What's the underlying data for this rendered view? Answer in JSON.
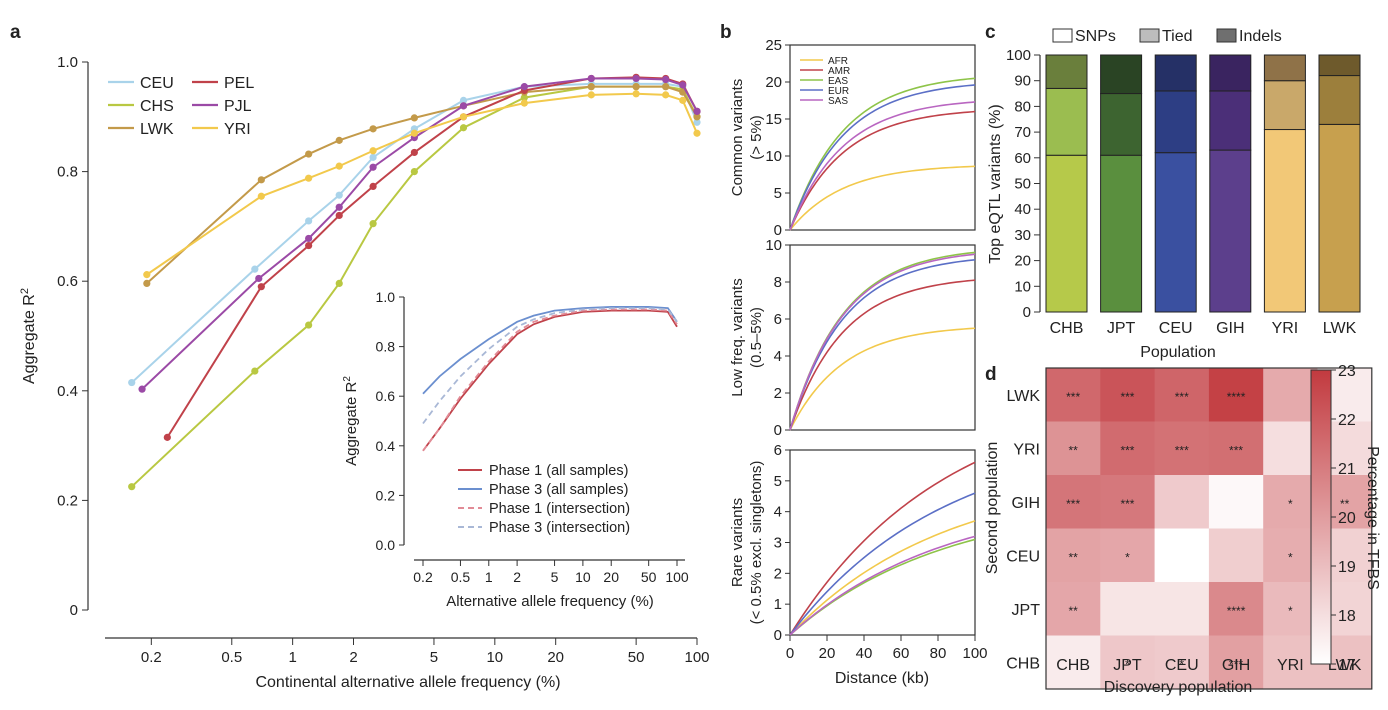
{
  "panels": {
    "a": "a",
    "b": "b",
    "c": "c",
    "d": "d"
  },
  "chart_data": [
    {
      "id": "a-main",
      "type": "line",
      "xscale": "log",
      "xlabel": "Continental alternative allele frequency (%)",
      "ylabel_main": "Aggregate R",
      "ylabel_sup": "2",
      "xlim": [
        0.14,
        100
      ],
      "ylim": [
        0,
        1.0
      ],
      "xticks": [
        0.2,
        0.5,
        1,
        2,
        5,
        10,
        20,
        50,
        100
      ],
      "xtick_labels": [
        "0.2",
        "0.5",
        "1",
        "2",
        "5",
        "10",
        "20",
        "50",
        "100"
      ],
      "yticks": [
        0,
        0.2,
        0.4,
        0.6,
        0.8,
        1.0
      ],
      "ytick_labels": [
        "0",
        "0.2",
        "0.4",
        "0.6",
        "0.8",
        "1.0"
      ],
      "legend_position": "top-left",
      "series": [
        {
          "name": "CEU",
          "color": "#a9d3ea",
          "x": [
            0.16,
            0.65,
            1.2,
            1.7,
            2.5,
            4,
            7,
            14,
            30,
            50,
            70,
            85,
            100
          ],
          "y": [
            0.415,
            0.622,
            0.71,
            0.757,
            0.826,
            0.878,
            0.93,
            0.955,
            0.96,
            0.96,
            0.96,
            0.955,
            0.89
          ]
        },
        {
          "name": "CHS",
          "color": "#b9c842",
          "x": [
            0.16,
            0.65,
            1.2,
            1.7,
            2.5,
            4,
            7,
            14,
            30,
            50,
            70,
            85,
            100
          ],
          "y": [
            0.225,
            0.436,
            0.52,
            0.596,
            0.705,
            0.8,
            0.88,
            0.935,
            0.955,
            0.955,
            0.955,
            0.95,
            0.9
          ]
        },
        {
          "name": "LWK",
          "color": "#c39a4a",
          "x": [
            0.19,
            0.7,
            1.2,
            1.7,
            2.5,
            4,
            7,
            14,
            30,
            50,
            70,
            85,
            100
          ],
          "y": [
            0.596,
            0.785,
            0.832,
            0.857,
            0.878,
            0.898,
            0.92,
            0.945,
            0.955,
            0.955,
            0.955,
            0.945,
            0.9
          ]
        },
        {
          "name": "PEL",
          "color": "#c0424a",
          "x": [
            0.24,
            0.7,
            1.2,
            1.7,
            2.5,
            4,
            7,
            14,
            30,
            50,
            70,
            85,
            100
          ],
          "y": [
            0.315,
            0.59,
            0.665,
            0.72,
            0.773,
            0.835,
            0.9,
            0.948,
            0.97,
            0.972,
            0.97,
            0.96,
            0.91
          ]
        },
        {
          "name": "PJL",
          "color": "#9b4aa6",
          "x": [
            0.18,
            0.68,
            1.2,
            1.7,
            2.5,
            4,
            7,
            14,
            30,
            50,
            70,
            85,
            100
          ],
          "y": [
            0.403,
            0.605,
            0.678,
            0.735,
            0.808,
            0.862,
            0.92,
            0.955,
            0.97,
            0.97,
            0.968,
            0.958,
            0.91
          ]
        },
        {
          "name": "YRI",
          "color": "#f2c94c",
          "x": [
            0.19,
            0.7,
            1.2,
            1.7,
            2.5,
            4,
            7,
            14,
            30,
            50,
            70,
            85,
            100
          ],
          "y": [
            0.612,
            0.755,
            0.788,
            0.81,
            0.838,
            0.87,
            0.9,
            0.925,
            0.94,
            0.942,
            0.94,
            0.93,
            0.87
          ]
        }
      ]
    },
    {
      "id": "a-inset",
      "type": "line",
      "xscale": "log",
      "xlabel": "Alternative allele frequency (%)",
      "ylabel_main": "Aggregate R",
      "ylabel_sup": "2",
      "xlim": [
        0.2,
        100
      ],
      "ylim": [
        0,
        1.0
      ],
      "xticks": [
        0.2,
        0.5,
        1,
        2,
        5,
        10,
        20,
        50,
        100
      ],
      "xtick_labels": [
        "0.2",
        "0.5",
        "1",
        "2",
        "5",
        "10",
        "20",
        "50",
        "100"
      ],
      "yticks": [
        0,
        0.2,
        0.4,
        0.6,
        0.8,
        1.0
      ],
      "ytick_labels": [
        "0.0",
        "0.2",
        "0.4",
        "0.6",
        "0.8",
        "1.0"
      ],
      "legend_position": "bottom-right",
      "series": [
        {
          "name": "Phase 1 (all samples)",
          "color": "#c0424a",
          "dash": false,
          "x": [
            0.2,
            0.3,
            0.5,
            1,
            2,
            3,
            5,
            10,
            20,
            50,
            80,
            100
          ],
          "y": [
            0.38,
            0.47,
            0.59,
            0.73,
            0.85,
            0.89,
            0.92,
            0.94,
            0.945,
            0.945,
            0.94,
            0.88
          ]
        },
        {
          "name": "Phase 3 (all samples)",
          "color": "#6b8fcf",
          "dash": false,
          "x": [
            0.2,
            0.3,
            0.5,
            1,
            2,
            3,
            5,
            10,
            20,
            50,
            80,
            100
          ],
          "y": [
            0.61,
            0.68,
            0.75,
            0.83,
            0.9,
            0.925,
            0.945,
            0.955,
            0.96,
            0.96,
            0.955,
            0.9
          ]
        },
        {
          "name": "Phase 1 (intersection)",
          "color": "#e28b96",
          "dash": true,
          "x": [
            0.2,
            0.3,
            0.5,
            1,
            2,
            3,
            5,
            10,
            20,
            50,
            80,
            100
          ],
          "y": [
            0.38,
            0.47,
            0.6,
            0.74,
            0.86,
            0.9,
            0.925,
            0.945,
            0.95,
            0.95,
            0.945,
            0.89
          ]
        },
        {
          "name": "Phase 3 (intersection)",
          "color": "#a9b8d6",
          "dash": true,
          "x": [
            0.2,
            0.3,
            0.5,
            1,
            2,
            3,
            5,
            10,
            20,
            50,
            80,
            100
          ],
          "y": [
            0.49,
            0.58,
            0.68,
            0.79,
            0.88,
            0.91,
            0.935,
            0.95,
            0.955,
            0.955,
            0.95,
            0.9
          ]
        }
      ]
    },
    {
      "id": "b",
      "type": "line",
      "xlabel": "Distance (kb)",
      "xlim": [
        0,
        100
      ],
      "xticks": [
        0,
        20,
        40,
        60,
        80,
        100
      ],
      "xtick_labels": [
        "0",
        "20",
        "40",
        "60",
        "80",
        "100"
      ],
      "legend_position": "top-left",
      "legend": [
        {
          "name": "AFR",
          "color": "#f2c94c"
        },
        {
          "name": "AMR",
          "color": "#c0424a"
        },
        {
          "name": "EAS",
          "color": "#8ec449"
        },
        {
          "name": "EUR",
          "color": "#5b6fc6"
        },
        {
          "name": "SAS",
          "color": "#b966c1"
        }
      ],
      "subplots": [
        {
          "ylabel_lines": [
            "Common variants",
            "(> 5%)"
          ],
          "ylim": [
            0,
            25
          ],
          "yticks": [
            0,
            5,
            10,
            15,
            20,
            25
          ],
          "ytick_labels": [
            "0",
            "5",
            "10",
            "15",
            "20",
            "25"
          ],
          "series": [
            {
              "name": "AFR",
              "color": "#f2c94c",
              "end": 8.6
            },
            {
              "name": "AMR",
              "color": "#c0424a",
              "end": 16.0
            },
            {
              "name": "EAS",
              "color": "#8ec449",
              "end": 20.5
            },
            {
              "name": "EUR",
              "color": "#5b6fc6",
              "end": 19.6
            },
            {
              "name": "SAS",
              "color": "#b966c1",
              "end": 17.3
            }
          ]
        },
        {
          "ylabel_lines": [
            "Low freq. variants",
            "(0.5–5%)"
          ],
          "ylim": [
            0,
            10
          ],
          "yticks": [
            0,
            2,
            4,
            6,
            8,
            10
          ],
          "ytick_labels": [
            "0",
            "2",
            "4",
            "6",
            "8",
            "10"
          ],
          "series": [
            {
              "name": "AFR",
              "color": "#f2c94c",
              "end": 5.5
            },
            {
              "name": "AMR",
              "color": "#c0424a",
              "end": 8.1
            },
            {
              "name": "EAS",
              "color": "#8ec449",
              "end": 9.6
            },
            {
              "name": "EUR",
              "color": "#5b6fc6",
              "end": 9.2
            },
            {
              "name": "SAS",
              "color": "#b966c1",
              "end": 9.5
            }
          ]
        },
        {
          "ylabel_lines": [
            "Rare variants",
            "(< 0.5% excl. singletons)"
          ],
          "ylim": [
            0,
            6
          ],
          "yticks": [
            0,
            1,
            2,
            3,
            4,
            5,
            6
          ],
          "ytick_labels": [
            "0",
            "1",
            "2",
            "3",
            "4",
            "5",
            "6"
          ],
          "series": [
            {
              "name": "AFR",
              "color": "#f2c94c",
              "end": 3.7
            },
            {
              "name": "AMR",
              "color": "#c0424a",
              "end": 5.6
            },
            {
              "name": "EAS",
              "color": "#8ec449",
              "end": 3.1
            },
            {
              "name": "EUR",
              "color": "#5b6fc6",
              "end": 4.6
            },
            {
              "name": "SAS",
              "color": "#b966c1",
              "end": 3.2
            }
          ]
        }
      ]
    },
    {
      "id": "c",
      "type": "bar",
      "stacked": true,
      "xlabel": "Population",
      "ylabel": "Top eQTL variants (%)",
      "ylim": [
        0,
        100
      ],
      "yticks": [
        0,
        10,
        20,
        30,
        40,
        50,
        60,
        70,
        80,
        90,
        100
      ],
      "ytick_labels": [
        "0",
        "10",
        "20",
        "30",
        "40",
        "50",
        "60",
        "70",
        "80",
        "90",
        "100"
      ],
      "categories": [
        "CHB",
        "JPT",
        "CEU",
        "GIH",
        "YRI",
        "LWK"
      ],
      "legend": [
        "SNPs",
        "Tied",
        "Indels"
      ],
      "legend_colors": [
        "#ffffff",
        "#bdbdbd",
        "#6f6f6f"
      ],
      "legend_position": "top",
      "series": [
        {
          "name": "SNPs",
          "values": [
            61,
            61,
            62,
            63,
            71,
            73
          ]
        },
        {
          "name": "Tied",
          "values": [
            26,
            24,
            24,
            23,
            19,
            19
          ]
        },
        {
          "name": "Indels",
          "values": [
            13,
            15,
            14,
            14,
            10,
            8
          ]
        }
      ],
      "bar_colors": [
        [
          "#b6c94a",
          "#9bbd50",
          "#6a7f3c"
        ],
        [
          "#5a8f3e",
          "#3d6430",
          "#2a4424"
        ],
        [
          "#3a50a0",
          "#2d3e84",
          "#253066"
        ],
        [
          "#5c3f8c",
          "#4b2f78",
          "#3a2460"
        ],
        [
          "#f2c877",
          "#c9a86a",
          "#8f7248"
        ],
        [
          "#c7a04e",
          "#9c7f3c",
          "#6e5a2c"
        ]
      ]
    },
    {
      "id": "d",
      "type": "heatmap",
      "xlabel": "Discovery population",
      "ylabel": "Second population",
      "colorbar_label": "Percentage in TFBS",
      "colorbar_range": [
        17,
        23
      ],
      "colorbar_ticks": [
        "17",
        "18",
        "19",
        "20",
        "21",
        "22",
        "23"
      ],
      "color_low": "#ffffff",
      "color_high": "#c23a3f",
      "cols": [
        "CHB",
        "JPT",
        "CEU",
        "GIH",
        "YRI",
        "LWK"
      ],
      "rows": [
        "LWK",
        "YRI",
        "GIH",
        "CEU",
        "JPT",
        "CHB"
      ],
      "values": [
        [
          21.6,
          22.2,
          21.7,
          22.8,
          19.6,
          17.6
        ],
        [
          20.3,
          21.5,
          21.3,
          21.4,
          18.0,
          18.1
        ],
        [
          21.2,
          21.1,
          18.6,
          17.2,
          19.6,
          19.8
        ],
        [
          19.8,
          19.7,
          17.0,
          18.5,
          19.5,
          18.4
        ],
        [
          19.7,
          17.8,
          17.8,
          20.6,
          19.1,
          18.3
        ],
        [
          17.6,
          18.7,
          18.6,
          19.9,
          18.9,
          18.9
        ]
      ],
      "stars": [
        [
          "***",
          "***",
          "***",
          "****",
          "",
          ""
        ],
        [
          "**",
          "***",
          "***",
          "***",
          "",
          ""
        ],
        [
          "***",
          "***",
          "",
          "",
          "*",
          "**"
        ],
        [
          "**",
          "*",
          "",
          "",
          "*",
          ""
        ],
        [
          "**",
          "",
          "",
          "****",
          "*",
          ""
        ],
        [
          "",
          "*",
          "*",
          "***",
          "",
          ""
        ]
      ]
    }
  ]
}
